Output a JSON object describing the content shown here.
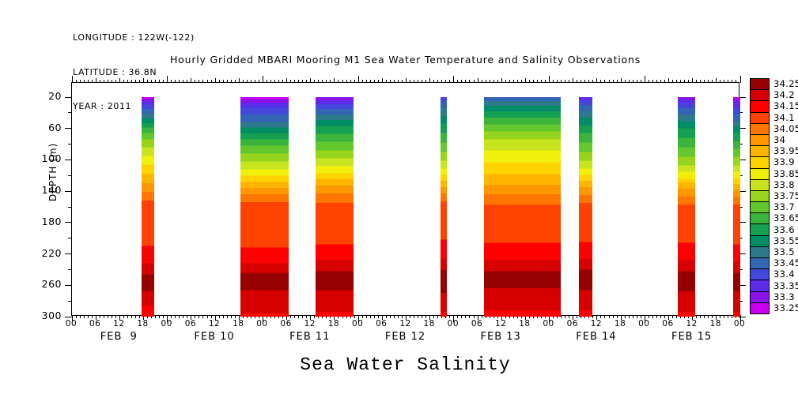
{
  "header": {
    "longitude": "LONGITUDE : 122W(-122)",
    "latitude": "LATITUDE : 36.8N",
    "year": "YEAR : 2011"
  },
  "title": "Hourly Gridded MBARI Mooring M1 Sea Water Temperature and Salinity Observations",
  "footer_title": "Sea Water Salinity",
  "axes": {
    "y_label": "DEPTH (m)",
    "y_tick_labels": [
      "20",
      "60",
      "100",
      "140",
      "180",
      "220",
      "260",
      "300"
    ],
    "y_tick_values": [
      20,
      60,
      100,
      140,
      180,
      220,
      260,
      300
    ],
    "y_minor_tick_values": [
      40,
      80,
      120,
      160,
      200,
      240,
      280
    ],
    "x_hour_labels": [
      "00",
      "06",
      "12",
      "18",
      "00",
      "06",
      "12",
      "18",
      "00",
      "06",
      "12",
      "18",
      "00",
      "06",
      "12",
      "18",
      "00",
      "06",
      "12",
      "18",
      "00",
      "06",
      "12",
      "18",
      "00",
      "06",
      "12",
      "18",
      "00"
    ],
    "x_date_labels": [
      "FEB  9",
      "FEB 10",
      "FEB 11",
      "FEB 12",
      "FEB 13",
      "FEB 14",
      "FEB 15"
    ]
  },
  "colorbar": {
    "labels": [
      "34.25",
      "34.2",
      "34.15",
      "34.1",
      "34.05",
      "34",
      "33.95",
      "33.9",
      "33.85",
      "33.8",
      "33.75",
      "33.7",
      "33.65",
      "33.6",
      "33.55",
      "33.5",
      "33.45",
      "33.4",
      "33.35",
      "33.3",
      "33.25"
    ],
    "colors": [
      "#970000",
      "#d60000",
      "#fe0000",
      "#ff4200",
      "#ff7700",
      "#ff9700",
      "#ffb500",
      "#ffd300",
      "#f0f00a",
      "#c8e41e",
      "#97d41e",
      "#62c82e",
      "#3cb43c",
      "#14a050",
      "#008c64",
      "#2c7a8a",
      "#3464b4",
      "#4446dc",
      "#5c2ce8",
      "#8a14e8",
      "#c800f0"
    ],
    "min": 33.25,
    "max": 34.25,
    "step": 0.05
  },
  "chart_data": {
    "type": "heatmap",
    "title": "Hourly Gridded MBARI Mooring M1 Sea Water Temperature and Salinity Observations",
    "ylabel": "DEPTH (m)",
    "colorbar_label": "Sea Water Salinity",
    "x_start": "FEB 9 2011 00:00",
    "x_end": "FEB 16 2011 00:00",
    "x_total_hours": 168,
    "x_major_tick_hours": 6,
    "x_minor_tick_hours": 1,
    "ylim": [
      20,
      300
    ],
    "zlim": [
      33.25,
      34.25
    ],
    "grid": false,
    "legend_position": "right-colorbar",
    "bands": [
      {
        "name": "band-feb9-evening",
        "start_hour": 17.5,
        "end_hour": 20.7,
        "span_label": "FEB 9 ~17:30 to ~20:45",
        "profile": [
          [
            20,
            33.25
          ],
          [
            22,
            33.3
          ],
          [
            25,
            33.35
          ],
          [
            29,
            33.4
          ],
          [
            35,
            33.45
          ],
          [
            41,
            33.5
          ],
          [
            47,
            33.55
          ],
          [
            53,
            33.6
          ],
          [
            59,
            33.65
          ],
          [
            66,
            33.7
          ],
          [
            74,
            33.75
          ],
          [
            84,
            33.8
          ],
          [
            95,
            33.85
          ],
          [
            106,
            33.9
          ],
          [
            118,
            33.95
          ],
          [
            130,
            34
          ],
          [
            141,
            34.05
          ],
          [
            152,
            34.1
          ],
          [
            210,
            34.15
          ],
          [
            232,
            34.2
          ],
          [
            246,
            34.25
          ],
          [
            268,
            34.2
          ],
          [
            286,
            34.15
          ]
        ]
      },
      {
        "name": "band-feb10-feb11",
        "start_hour": 42.3,
        "end_hour": 54.5,
        "span_label": "FEB 10 ~18:20 to FEB 11 ~06:30",
        "profile": [
          [
            20,
            33.25
          ],
          [
            23,
            33.3
          ],
          [
            27,
            33.35
          ],
          [
            33,
            33.4
          ],
          [
            42,
            33.45
          ],
          [
            52,
            33.5
          ],
          [
            59,
            33.55
          ],
          [
            66,
            33.6
          ],
          [
            74,
            33.65
          ],
          [
            82,
            33.7
          ],
          [
            92,
            33.75
          ],
          [
            102,
            33.8
          ],
          [
            112,
            33.85
          ],
          [
            120,
            33.9
          ],
          [
            128,
            33.95
          ],
          [
            136,
            34
          ],
          [
            144,
            34.05
          ],
          [
            154,
            34.1
          ],
          [
            212,
            34.15
          ],
          [
            232,
            34.2
          ],
          [
            244,
            34.25
          ],
          [
            266,
            34.2
          ],
          [
            296,
            34.15
          ]
        ]
      },
      {
        "name": "band-feb11-day",
        "start_hour": 61.2,
        "end_hour": 70.8,
        "span_label": "FEB 11 ~13:10 to ~22:50",
        "profile": [
          [
            20,
            33.3
          ],
          [
            24,
            33.35
          ],
          [
            29,
            33.4
          ],
          [
            35,
            33.45
          ],
          [
            42,
            33.5
          ],
          [
            49,
            33.55
          ],
          [
            57,
            33.6
          ],
          [
            67,
            33.65
          ],
          [
            77,
            33.7
          ],
          [
            88,
            33.75
          ],
          [
            98,
            33.8
          ],
          [
            108,
            33.85
          ],
          [
            117,
            33.9
          ],
          [
            125,
            33.95
          ],
          [
            133,
            34
          ],
          [
            143,
            34.05
          ],
          [
            155,
            34.1
          ],
          [
            208,
            34.15
          ],
          [
            228,
            34.2
          ],
          [
            242,
            34.25
          ],
          [
            266,
            34.2
          ],
          [
            294,
            34.15
          ]
        ]
      },
      {
        "name": "band-feb12-night",
        "start_hour": 92.6,
        "end_hour": 94.2,
        "span_label": "FEB 12 ~20:40 to ~22:10",
        "profile": [
          [
            20,
            33.4
          ],
          [
            26,
            33.45
          ],
          [
            34,
            33.5
          ],
          [
            44,
            33.55
          ],
          [
            54,
            33.6
          ],
          [
            66,
            33.65
          ],
          [
            78,
            33.7
          ],
          [
            90,
            33.75
          ],
          [
            101,
            33.8
          ],
          [
            111,
            33.85
          ],
          [
            119,
            33.9
          ],
          [
            127,
            33.95
          ],
          [
            135,
            34
          ],
          [
            143,
            34.05
          ],
          [
            153,
            34.1
          ],
          [
            202,
            34.15
          ],
          [
            226,
            34.2
          ],
          [
            240,
            34.25
          ],
          [
            270,
            34.2
          ],
          [
            294,
            34.15
          ]
        ]
      },
      {
        "name": "band-feb13-feb14",
        "start_hour": 103.6,
        "end_hour": 122.9,
        "span_label": "FEB 13 ~07:40 to FEB 14 ~02:55",
        "profile": [
          [
            20,
            33.45
          ],
          [
            25,
            33.5
          ],
          [
            31,
            33.55
          ],
          [
            38,
            33.6
          ],
          [
            46,
            33.65
          ],
          [
            55,
            33.7
          ],
          [
            64,
            33.75
          ],
          [
            74,
            33.8
          ],
          [
            88,
            33.85
          ],
          [
            103,
            33.9
          ],
          [
            118,
            33.95
          ],
          [
            132,
            34
          ],
          [
            144,
            34.05
          ],
          [
            157,
            34.1
          ],
          [
            206,
            34.15
          ],
          [
            228,
            34.2
          ],
          [
            242,
            34.25
          ],
          [
            264,
            34.2
          ],
          [
            292,
            34.15
          ]
        ]
      },
      {
        "name": "band-feb14-morning",
        "start_hour": 127.4,
        "end_hour": 130.8,
        "span_label": "FEB 14 ~07:25 to ~10:50",
        "profile": [
          [
            20,
            33.35
          ],
          [
            24,
            33.4
          ],
          [
            30,
            33.45
          ],
          [
            38,
            33.5
          ],
          [
            46,
            33.55
          ],
          [
            56,
            33.6
          ],
          [
            66,
            33.65
          ],
          [
            78,
            33.7
          ],
          [
            90,
            33.75
          ],
          [
            101,
            33.8
          ],
          [
            111,
            33.85
          ],
          [
            119,
            33.9
          ],
          [
            127,
            33.95
          ],
          [
            135,
            34
          ],
          [
            145,
            34.05
          ],
          [
            155,
            34.1
          ],
          [
            205,
            34.15
          ],
          [
            226,
            34.2
          ],
          [
            240,
            34.25
          ],
          [
            266,
            34.2
          ],
          [
            292,
            34.15
          ]
        ]
      },
      {
        "name": "band-feb15-midday",
        "start_hour": 152.3,
        "end_hour": 156.7,
        "span_label": "FEB 15 ~08:20 to ~12:40",
        "profile": [
          [
            20,
            33.3
          ],
          [
            23,
            33.35
          ],
          [
            28,
            33.4
          ],
          [
            34,
            33.45
          ],
          [
            42,
            33.5
          ],
          [
            50,
            33.55
          ],
          [
            60,
            33.6
          ],
          [
            72,
            33.65
          ],
          [
            84,
            33.7
          ],
          [
            96,
            33.75
          ],
          [
            107,
            33.8
          ],
          [
            115,
            33.85
          ],
          [
            123,
            33.9
          ],
          [
            129,
            33.95
          ],
          [
            137,
            34
          ],
          [
            147,
            34.05
          ],
          [
            157,
            34.1
          ],
          [
            206,
            34.15
          ],
          [
            228,
            34.2
          ],
          [
            242,
            34.25
          ],
          [
            268,
            34.2
          ],
          [
            294,
            34.15
          ]
        ]
      },
      {
        "name": "band-feb15-end",
        "start_hour": 166.2,
        "end_hour": 168,
        "span_label": "FEB 15 ~22:10 to FEB 16 00:00",
        "profile": [
          [
            20,
            33.25
          ],
          [
            23,
            33.3
          ],
          [
            27,
            33.35
          ],
          [
            33,
            33.4
          ],
          [
            41,
            33.45
          ],
          [
            50,
            33.5
          ],
          [
            58,
            33.55
          ],
          [
            66,
            33.6
          ],
          [
            76,
            33.65
          ],
          [
            86,
            33.7
          ],
          [
            96,
            33.75
          ],
          [
            107,
            33.8
          ],
          [
            115,
            33.85
          ],
          [
            123,
            33.9
          ],
          [
            131,
            33.95
          ],
          [
            139,
            34
          ],
          [
            147,
            34.05
          ],
          [
            157,
            34.1
          ],
          [
            208,
            34.15
          ],
          [
            230,
            34.2
          ],
          [
            244,
            34.25
          ],
          [
            268,
            34.2
          ],
          [
            294,
            34.15
          ]
        ]
      }
    ]
  }
}
